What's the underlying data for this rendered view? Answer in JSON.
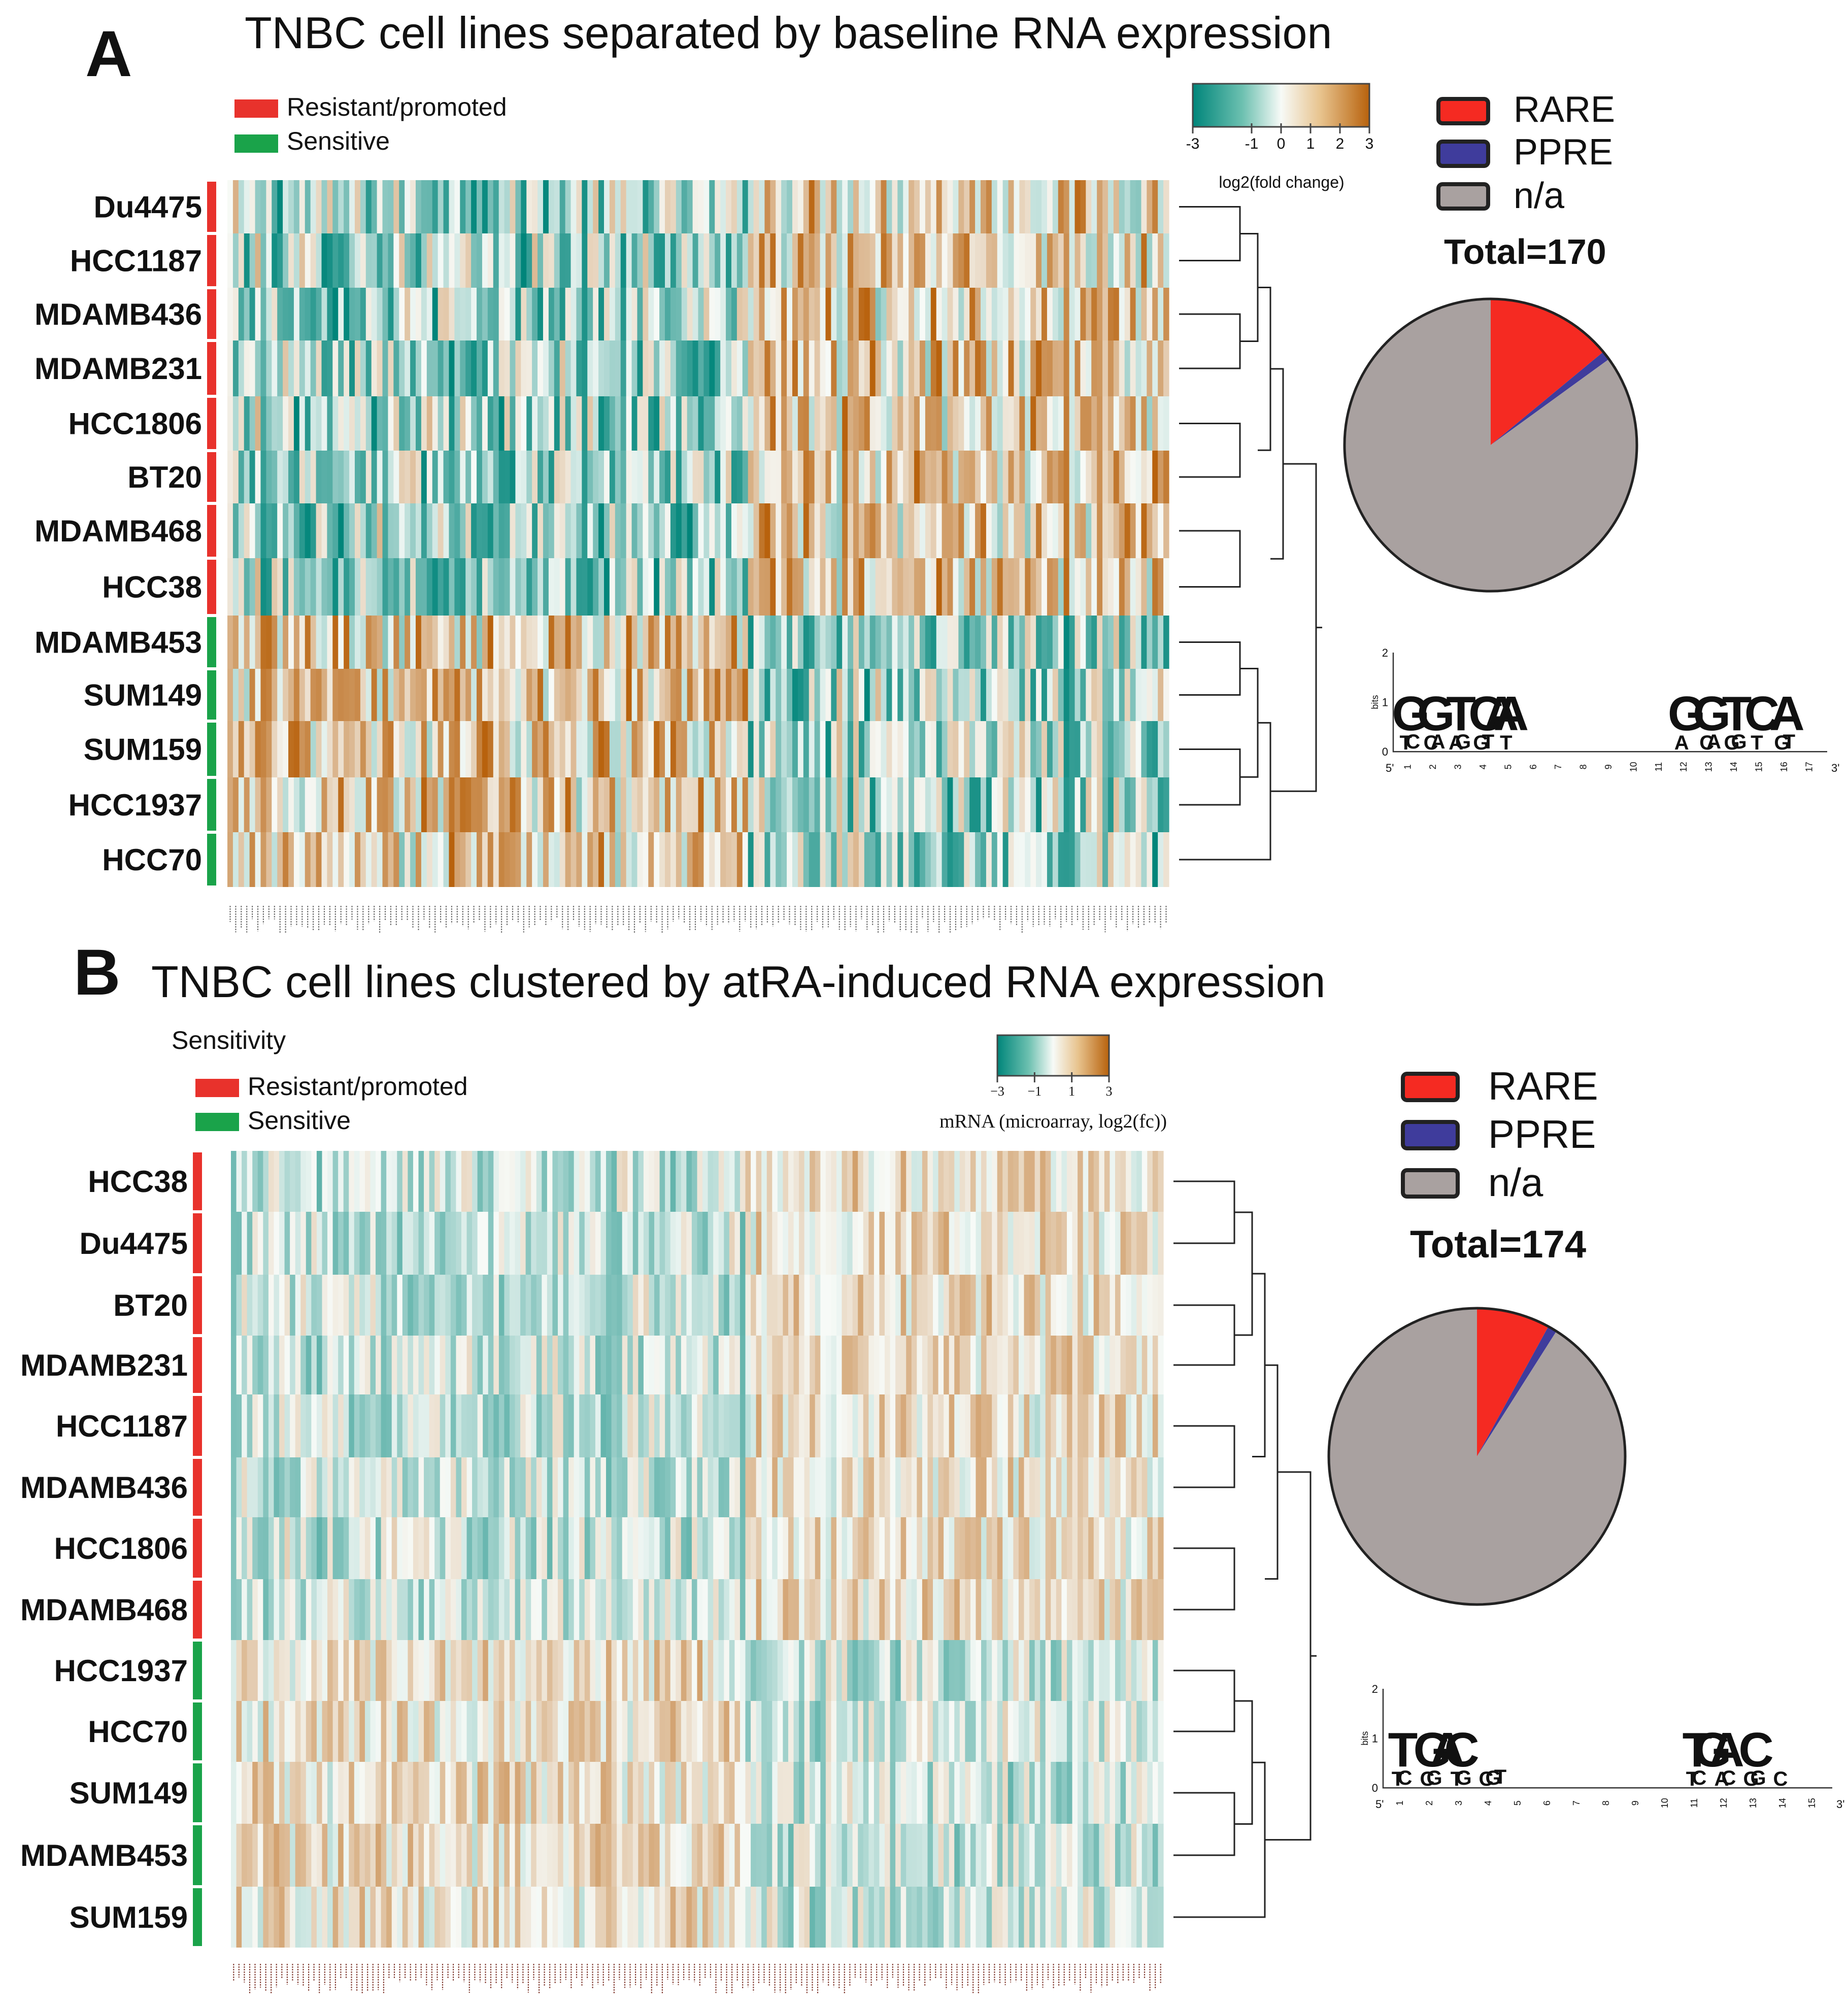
{
  "colors": {
    "resistant": "#e8322c",
    "sensitive": "#1aa34a",
    "low": "#00857a",
    "mid": "#f7faf7",
    "high": "#b8620d",
    "rare": "#f52a22",
    "ppre": "#3f3c9c",
    "na": "#a9a1a0"
  },
  "chart_data": [
    {
      "id": "A",
      "type": "heatmap",
      "panel_letter": "A",
      "title": "TNBC cell lines separated by baseline RNA expression",
      "legend": {
        "resistant": "Resistant/promoted",
        "sensitive": "Sensitive"
      },
      "colorbar": {
        "ticks": [
          "-3",
          "-1",
          "0",
          "1",
          "2",
          "3"
        ],
        "label": "log2(fold change)",
        "range": [
          -3,
          3
        ]
      },
      "rows": [
        {
          "name": "Du4475",
          "group": "resistant"
        },
        {
          "name": "HCC1187",
          "group": "resistant"
        },
        {
          "name": "MDAMB436",
          "group": "resistant"
        },
        {
          "name": "MDAMB231",
          "group": "resistant"
        },
        {
          "name": "HCC1806",
          "group": "resistant"
        },
        {
          "name": "BT20",
          "group": "resistant"
        },
        {
          "name": "MDAMB468",
          "group": "resistant"
        },
        {
          "name": "HCC38",
          "group": "resistant"
        },
        {
          "name": "MDAMB453",
          "group": "sensitive"
        },
        {
          "name": "SUM149",
          "group": "sensitive"
        },
        {
          "name": "SUM159",
          "group": "sensitive"
        },
        {
          "name": "HCC1937",
          "group": "sensitive"
        },
        {
          "name": "HCC70",
          "group": "sensitive"
        }
      ],
      "n_genes": 170,
      "pie": {
        "legend": [
          "RARE",
          "PPRE",
          "n/a"
        ],
        "total": "Total=170",
        "slices": [
          {
            "label": "RARE",
            "value": 14
          },
          {
            "label": "PPRE",
            "value": 1
          },
          {
            "label": "n/a",
            "value": 85
          }
        ]
      },
      "motif": {
        "yticks": [
          "2",
          "1",
          "0"
        ],
        "ylabel": "bits",
        "left": "5'",
        "right": "3'",
        "positions": [
          "1",
          "2",
          "3",
          "4",
          "5",
          "6",
          "7",
          "8",
          "9",
          "10",
          "11",
          "12",
          "13",
          "14",
          "15",
          "16",
          "17"
        ],
        "block1": [
          {
            "pos": 1,
            "top": "G",
            "sub": "TC"
          },
          {
            "pos": 2,
            "top": "G",
            "sub": "CA"
          },
          {
            "pos": 3,
            "top": "T",
            "sub": "AG"
          },
          {
            "pos": 4,
            "top": "CA",
            "sub": "GT"
          },
          {
            "pos": 5,
            "top": "A",
            "sub": "T"
          }
        ],
        "block2": [
          {
            "pos": 12,
            "top": "G",
            "sub": "A"
          },
          {
            "pos": 13,
            "top": "G",
            "sub": "CA"
          },
          {
            "pos": 14,
            "top": "T",
            "sub": "GG"
          },
          {
            "pos": 15,
            "top": "C",
            "sub": "T"
          },
          {
            "pos": 16,
            "top": "A",
            "sub": "GT"
          }
        ]
      }
    },
    {
      "id": "B",
      "type": "heatmap",
      "panel_letter": "B",
      "title": "TNBC cell lines clustered by atRA-induced RNA expression",
      "sensitivity_label": "Sensitivity",
      "legend": {
        "resistant": "Resistant/promoted",
        "sensitive": "Sensitive"
      },
      "colorbar": {
        "ticks": [
          "−3",
          "−1",
          "1",
          "3"
        ],
        "label": "mRNA (microarray, log2(fc))",
        "range": [
          -3,
          3
        ]
      },
      "rows": [
        {
          "name": "HCC38",
          "group": "resistant"
        },
        {
          "name": "Du4475",
          "group": "resistant"
        },
        {
          "name": "BT20",
          "group": "resistant"
        },
        {
          "name": "MDAMB231",
          "group": "resistant"
        },
        {
          "name": "HCC1187",
          "group": "resistant"
        },
        {
          "name": "MDAMB436",
          "group": "resistant"
        },
        {
          "name": "HCC1806",
          "group": "resistant"
        },
        {
          "name": "MDAMB468",
          "group": "resistant"
        },
        {
          "name": "HCC1937",
          "group": "sensitive"
        },
        {
          "name": "HCC70",
          "group": "sensitive"
        },
        {
          "name": "SUM149",
          "group": "sensitive"
        },
        {
          "name": "MDAMB453",
          "group": "sensitive"
        },
        {
          "name": "SUM159",
          "group": "sensitive"
        }
      ],
      "n_genes": 174,
      "pie": {
        "legend": [
          "RARE",
          "PPRE",
          "n/a"
        ],
        "total": "Total=174",
        "slices": [
          {
            "label": "RARE",
            "value": 8
          },
          {
            "label": "PPRE",
            "value": 1
          },
          {
            "label": "n/a",
            "value": 91
          }
        ]
      },
      "motif": {
        "yticks": [
          "2",
          "1",
          "0"
        ],
        "ylabel": "bits",
        "left": "5'",
        "right": "3'",
        "positions": [
          "1",
          "2",
          "3",
          "4",
          "5",
          "6",
          "7",
          "8",
          "9",
          "10",
          "11",
          "12",
          "13",
          "14",
          "15"
        ],
        "block1": [
          {
            "pos": 1,
            "top": "T",
            "sub": "TC"
          },
          {
            "pos": 2,
            "top": "GA",
            "sub": "CG"
          },
          {
            "pos": 3,
            "top": "C",
            "sub": "TG"
          },
          {
            "pos": 4,
            "top": "",
            "sub": "CGT"
          }
        ],
        "block2": [
          {
            "pos": 11,
            "top": "TG",
            "sub": "TC"
          },
          {
            "pos": 12,
            "top": "A",
            "sub": "AC"
          },
          {
            "pos": 13,
            "top": "C",
            "sub": "GG"
          },
          {
            "pos": 14,
            "top": "",
            "sub": "C"
          }
        ]
      }
    }
  ]
}
